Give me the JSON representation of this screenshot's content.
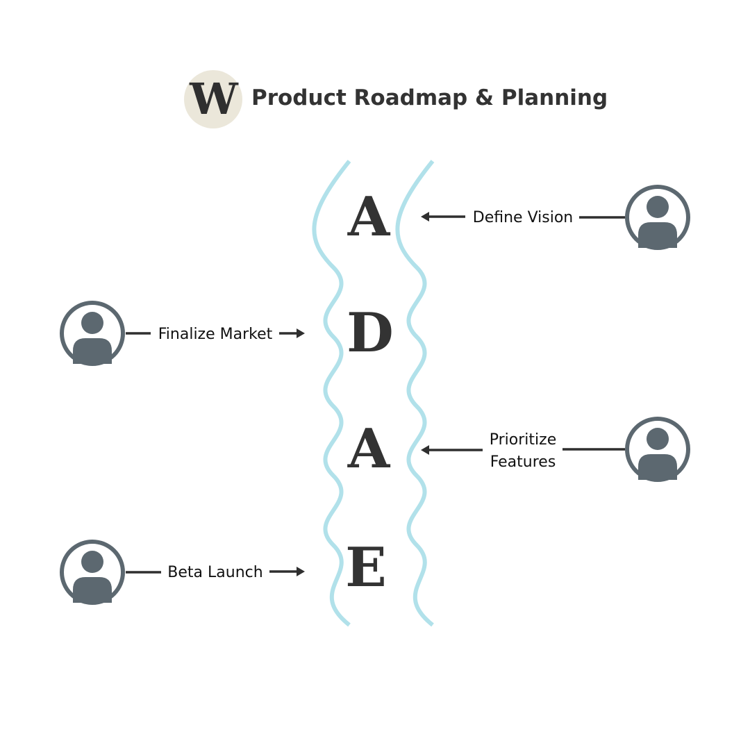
{
  "header": {
    "logo_letter": "W",
    "title": "Product Roadmap & Planning"
  },
  "acronym": {
    "letters": [
      "A",
      "D",
      "A",
      "E"
    ]
  },
  "steps": [
    {
      "label_lines": [
        "Define Vision"
      ]
    },
    {
      "label_lines": [
        "Finalize Market"
      ]
    },
    {
      "label_lines": [
        "Prioritize",
        "Features"
      ]
    },
    {
      "label_lines": [
        "Beta Launch"
      ]
    }
  ],
  "colors": {
    "wave": "#b1e1ea",
    "avatar": "#5c6870",
    "logo_badge": "#ebe7da",
    "text": "#333333"
  },
  "icons": {
    "avatar": "user-avatar-icon",
    "logo": "w-logo-icon"
  }
}
